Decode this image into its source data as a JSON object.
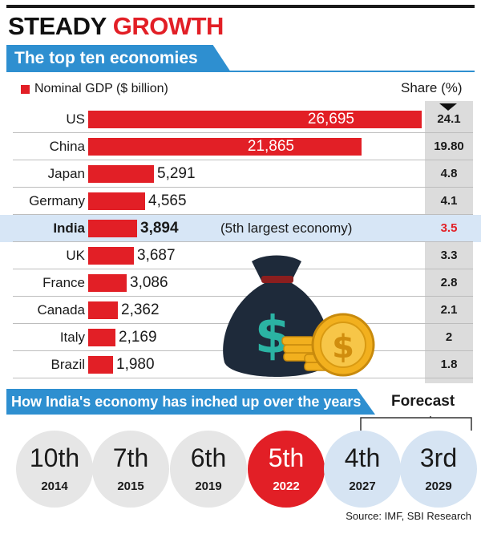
{
  "header": {
    "title_part1": "STEADY",
    "title_part2": "GROWTH"
  },
  "chart_banner": "The top ten economies",
  "legend_label": "Nominal GDP ($ billion)",
  "share_header": "Share (%)",
  "chart_data": {
    "type": "bar",
    "orientation": "horizontal",
    "title": "The top ten economies",
    "series": [
      {
        "name": "Nominal GDP ($ billion)",
        "values": [
          26695,
          21865,
          5291,
          4565,
          3894,
          3687,
          3086,
          2362,
          2169,
          1980
        ]
      }
    ],
    "categories": [
      "US",
      "China",
      "Japan",
      "Germany",
      "India",
      "UK",
      "France",
      "Canada",
      "Italy",
      "Brazil"
    ],
    "value_labels": [
      "26,695",
      "21,865",
      "5,291",
      "4,565",
      "3,894",
      "3,687",
      "3,086",
      "2,362",
      "2,169",
      "1,980"
    ],
    "share_percent": [
      "24.1",
      "19.80",
      "4.8",
      "4.1",
      "3.5",
      "3.3",
      "2.8",
      "2.1",
      "2",
      "1.8"
    ],
    "highlight": "India",
    "highlight_note": "(5th largest economy)",
    "xlim": [
      0,
      26695
    ],
    "grid": false,
    "legend_position": "top-left"
  },
  "progress_banner": "How India's economy has inched up over the years",
  "forecast_label": "Forecast",
  "ranks": [
    {
      "rank": "10th",
      "year": "2014",
      "state": "past"
    },
    {
      "rank": "7th",
      "year": "2015",
      "state": "past"
    },
    {
      "rank": "6th",
      "year": "2019",
      "state": "past"
    },
    {
      "rank": "5th",
      "year": "2022",
      "state": "current"
    },
    {
      "rank": "4th",
      "year": "2027",
      "state": "forecast"
    },
    {
      "rank": "3rd",
      "year": "2029",
      "state": "forecast"
    }
  ],
  "source": "Source: IMF, SBI Research",
  "colors": {
    "accent_red": "#e21f26",
    "banner_blue": "#2e8fd0",
    "highlight_row": "#d7e6f6",
    "forecast_circle": "#d6e4f3"
  },
  "illustration": "money-bag-and-coins"
}
